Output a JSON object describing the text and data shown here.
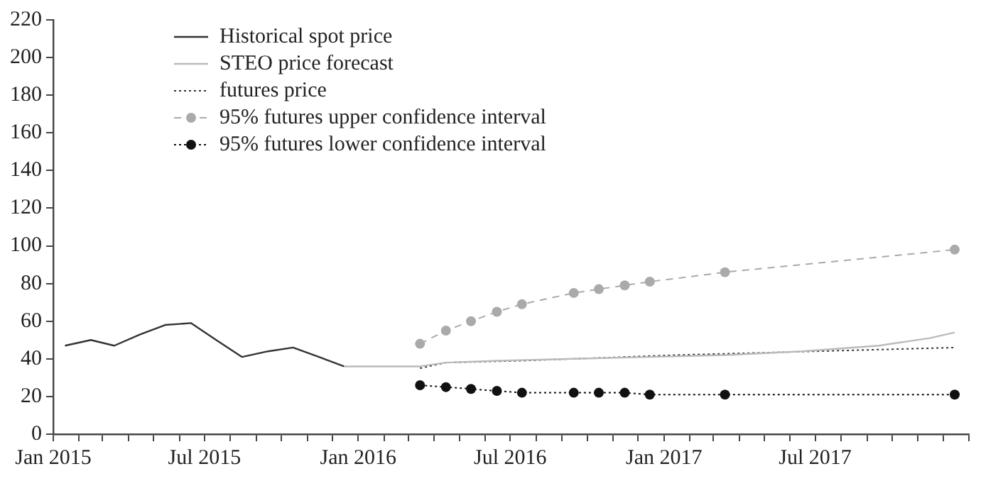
{
  "chart_data": {
    "type": "line",
    "xlim": [
      "2015-01-01",
      "2018-01-01"
    ],
    "xticks": [
      {
        "value": "2015-01-01",
        "label": "Jan 2015"
      },
      {
        "value": "2015-02-01",
        "label": null
      },
      {
        "value": "2015-03-01",
        "label": null
      },
      {
        "value": "2015-04-01",
        "label": null
      },
      {
        "value": "2015-05-01",
        "label": null
      },
      {
        "value": "2015-06-01",
        "label": null
      },
      {
        "value": "2015-07-01",
        "label": "Jul 2015"
      },
      {
        "value": "2015-08-01",
        "label": null
      },
      {
        "value": "2015-09-01",
        "label": null
      },
      {
        "value": "2015-10-01",
        "label": null
      },
      {
        "value": "2015-11-01",
        "label": null
      },
      {
        "value": "2015-12-01",
        "label": null
      },
      {
        "value": "2016-01-01",
        "label": "Jan 2016"
      },
      {
        "value": "2016-02-01",
        "label": null
      },
      {
        "value": "2016-03-01",
        "label": null
      },
      {
        "value": "2016-04-01",
        "label": null
      },
      {
        "value": "2016-05-01",
        "label": null
      },
      {
        "value": "2016-06-01",
        "label": null
      },
      {
        "value": "2016-07-01",
        "label": "Jul 2016"
      },
      {
        "value": "2016-08-01",
        "label": null
      },
      {
        "value": "2016-09-01",
        "label": null
      },
      {
        "value": "2016-10-01",
        "label": null
      },
      {
        "value": "2016-11-01",
        "label": null
      },
      {
        "value": "2016-12-01",
        "label": null
      },
      {
        "value": "2017-01-01",
        "label": "Jan 2017"
      },
      {
        "value": "2017-02-01",
        "label": null
      },
      {
        "value": "2017-03-01",
        "label": null
      },
      {
        "value": "2017-04-01",
        "label": null
      },
      {
        "value": "2017-05-01",
        "label": null
      },
      {
        "value": "2017-06-01",
        "label": null
      },
      {
        "value": "2017-07-01",
        "label": "Jul 2017"
      },
      {
        "value": "2017-08-01",
        "label": null
      },
      {
        "value": "2017-09-01",
        "label": null
      },
      {
        "value": "2017-10-01",
        "label": null
      },
      {
        "value": "2017-11-01",
        "label": null
      },
      {
        "value": "2017-12-01",
        "label": null
      },
      {
        "value": "2018-01-01",
        "label": null
      }
    ],
    "ylim": [
      0,
      220
    ],
    "yticks": [
      0,
      20,
      40,
      60,
      80,
      100,
      120,
      140,
      160,
      180,
      200,
      220
    ],
    "grid": false,
    "legend": "top left",
    "series": [
      {
        "name": "Historical spot price",
        "color": "#333333",
        "line_style": "solid",
        "marker": "none",
        "x": [
          "2015-01-15",
          "2015-02-15",
          "2015-03-15",
          "2015-04-15",
          "2015-05-15",
          "2015-06-15",
          "2015-07-15",
          "2015-08-15",
          "2015-09-15",
          "2015-10-15",
          "2015-11-15",
          "2015-12-15"
        ],
        "values": [
          47,
          50,
          47,
          53,
          58,
          59,
          50,
          41,
          44,
          46,
          41,
          36
        ]
      },
      {
        "name": "STEO price forecast",
        "color": "#bbbbbb",
        "line_style": "solid",
        "marker": "none",
        "x": [
          "2015-12-15",
          "2016-01-15",
          "2016-02-15",
          "2016-03-15",
          "2016-04-15",
          "2016-06-15",
          "2016-09-15",
          "2016-12-15",
          "2017-03-15",
          "2017-06-15",
          "2017-09-15",
          "2017-11-15",
          "2017-12-15"
        ],
        "values": [
          36,
          36,
          36,
          36,
          38,
          39,
          40,
          41,
          42,
          44,
          47,
          51,
          54
        ]
      },
      {
        "name": "futures price",
        "color": "#333333",
        "line_style": "dotted",
        "marker": "none",
        "x": [
          "2016-03-15",
          "2016-04-15",
          "2016-07-15",
          "2017-01-15",
          "2017-12-15"
        ],
        "values": [
          35,
          38,
          39,
          42,
          46
        ]
      },
      {
        "name": "95% futures upper confidence interval",
        "color": "#aaaaaa",
        "line_style": "dashed",
        "marker": "circle",
        "x": [
          "2016-03-15",
          "2016-04-15",
          "2016-05-15",
          "2016-06-15",
          "2016-07-15",
          "2016-09-15",
          "2016-10-15",
          "2016-11-15",
          "2016-12-15",
          "2017-03-15",
          "2017-12-15"
        ],
        "values": [
          48,
          55,
          60,
          65,
          69,
          75,
          77,
          79,
          81,
          86,
          98
        ]
      },
      {
        "name": "95% futures lower confidence interval",
        "color": "#111111",
        "line_style": "dotted",
        "marker": "circle",
        "x": [
          "2016-03-15",
          "2016-04-15",
          "2016-05-15",
          "2016-06-15",
          "2016-07-15",
          "2016-09-15",
          "2016-10-15",
          "2016-11-15",
          "2016-12-15",
          "2017-03-15",
          "2017-12-15"
        ],
        "values": [
          26,
          25,
          24,
          23,
          22,
          22,
          22,
          22,
          21,
          21,
          21
        ]
      }
    ]
  }
}
